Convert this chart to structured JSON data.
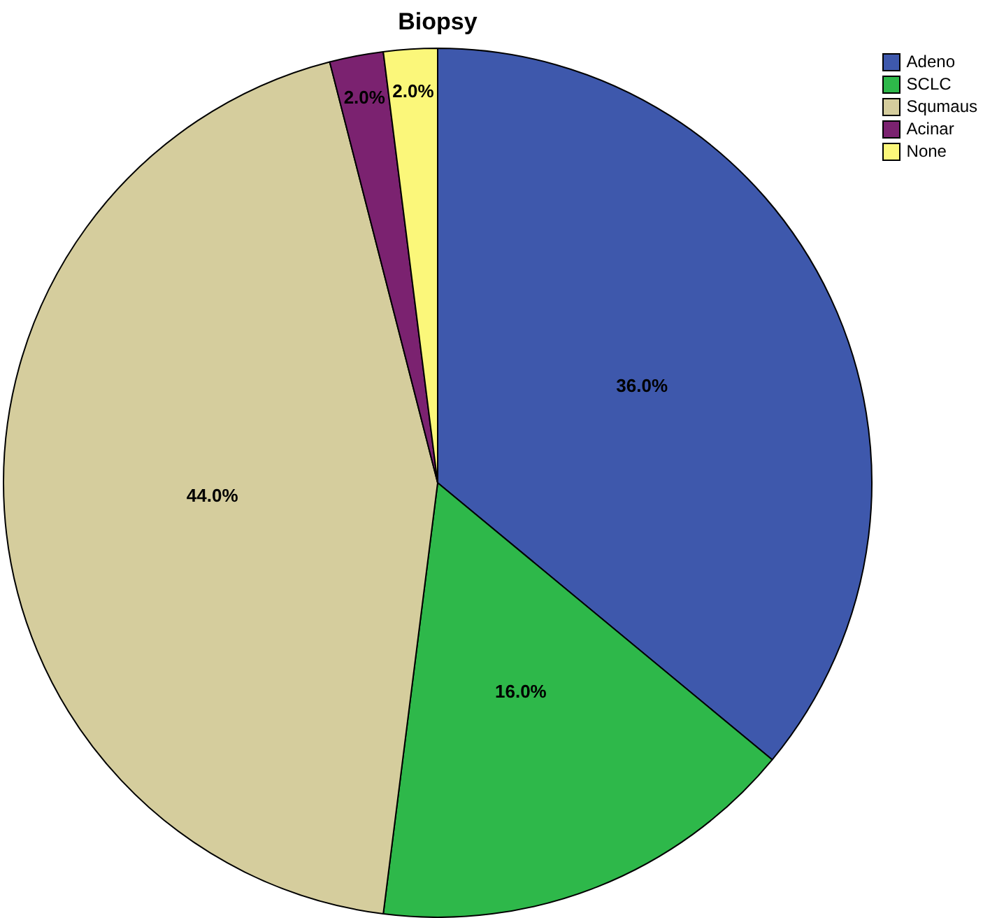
{
  "chart_data": {
    "type": "pie",
    "title": "Biopsy",
    "categories": [
      "Adeno",
      "SCLC",
      "Squmaus",
      "Acinar",
      "None"
    ],
    "values": [
      36,
      16,
      44,
      2,
      2
    ],
    "value_labels": [
      "36.0%",
      "16.0%",
      "44.0%",
      "2.0%",
      "2.0%"
    ],
    "colors": [
      "#3e58ac",
      "#2eb84a",
      "#d5cd9d",
      "#7b2270",
      "#fbf77a"
    ],
    "legend": "top right"
  }
}
